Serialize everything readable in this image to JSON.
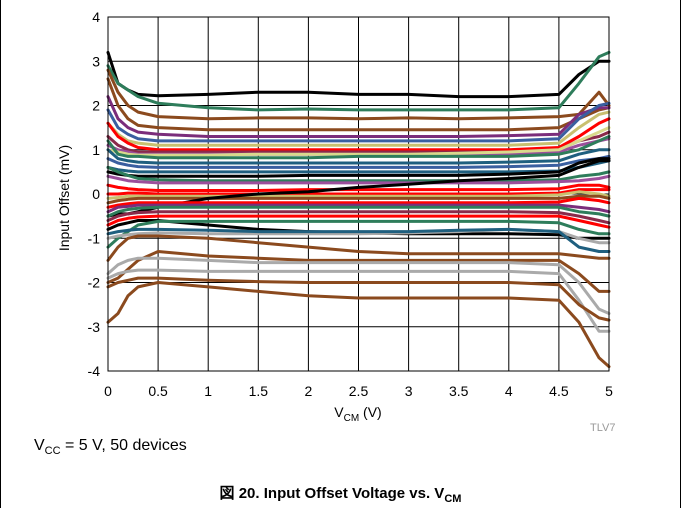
{
  "chart_data": {
    "type": "line",
    "title": "",
    "xlabel": "V",
    "xlabel_sub": "CM",
    "xlabel_unit": " (V)",
    "ylabel": "Input Offset (mV)",
    "xlim": [
      0,
      5
    ],
    "ylim": [
      -4,
      4
    ],
    "x_ticks": [
      "0",
      "0.5",
      "1",
      "1.5",
      "2",
      "2.5",
      "3",
      "3.5",
      "4",
      "4.5",
      "5"
    ],
    "y_ticks": [
      "4",
      "3",
      "2",
      "1",
      "0",
      "-1",
      "-2",
      "-3",
      "-4"
    ],
    "grid": true,
    "source_tag": "TLV7",
    "condition": {
      "prefix": "V",
      "sub": "CC",
      "rest": " = 5 V, 50 devices"
    },
    "caption": {
      "prefix": "図 20. Input Offset Voltage vs. V",
      "sub": "CM"
    },
    "x": [
      0,
      0.1,
      0.2,
      0.3,
      0.5,
      1,
      1.5,
      2,
      2.5,
      3,
      3.5,
      4,
      4.5,
      4.7,
      4.9,
      5
    ],
    "series": [
      {
        "color": "#000000",
        "values": [
          3.2,
          2.5,
          2.35,
          2.25,
          2.22,
          2.25,
          2.3,
          2.3,
          2.25,
          2.25,
          2.2,
          2.2,
          2.25,
          2.7,
          3.0,
          3.0
        ]
      },
      {
        "color": "#2e7d5b",
        "values": [
          2.9,
          2.5,
          2.35,
          2.2,
          2.05,
          1.95,
          1.9,
          1.92,
          1.9,
          1.9,
          1.9,
          1.9,
          1.95,
          2.5,
          3.1,
          3.2
        ]
      },
      {
        "color": "#8b4a1e",
        "values": [
          2.8,
          2.3,
          2.0,
          1.85,
          1.75,
          1.7,
          1.72,
          1.72,
          1.7,
          1.72,
          1.7,
          1.72,
          1.75,
          1.8,
          2.3,
          2.0
        ]
      },
      {
        "color": "#8b4a1e",
        "values": [
          2.6,
          2.0,
          1.7,
          1.55,
          1.5,
          1.45,
          1.45,
          1.45,
          1.45,
          1.45,
          1.45,
          1.45,
          1.5,
          1.7,
          1.9,
          1.95
        ]
      },
      {
        "color": "#7b2d7b",
        "values": [
          2.2,
          1.7,
          1.5,
          1.4,
          1.35,
          1.3,
          1.3,
          1.3,
          1.3,
          1.3,
          1.3,
          1.32,
          1.35,
          1.8,
          1.95,
          1.95
        ]
      },
      {
        "color": "#3a5fa0",
        "values": [
          1.9,
          1.5,
          1.35,
          1.25,
          1.2,
          1.2,
          1.2,
          1.2,
          1.2,
          1.2,
          1.2,
          1.2,
          1.25,
          1.7,
          2.0,
          2.05
        ]
      },
      {
        "color": "#c9c070",
        "values": [
          1.6,
          1.35,
          1.2,
          1.15,
          1.1,
          1.1,
          1.1,
          1.1,
          1.1,
          1.1,
          1.1,
          1.1,
          1.15,
          1.5,
          1.8,
          1.85
        ]
      },
      {
        "color": "#ff0000",
        "values": [
          1.6,
          1.3,
          1.15,
          1.05,
          1.0,
          1.0,
          1.0,
          1.0,
          1.0,
          1.0,
          1.0,
          1.0,
          1.05,
          1.3,
          1.6,
          1.7
        ]
      },
      {
        "color": "#8a2a4a",
        "values": [
          1.3,
          1.1,
          1.0,
          0.95,
          0.95,
          0.95,
          0.95,
          0.95,
          0.95,
          0.95,
          0.95,
          0.95,
          1.0,
          1.2,
          1.3,
          1.4
        ]
      },
      {
        "color": "#9b4f9b",
        "values": [
          1.1,
          1.0,
          0.95,
          0.9,
          0.9,
          0.9,
          0.9,
          0.9,
          0.9,
          0.9,
          0.9,
          0.9,
          0.95,
          1.1,
          1.2,
          1.25
        ]
      },
      {
        "color": "#d9d98c",
        "values": [
          1.0,
          0.95,
          0.9,
          0.88,
          0.88,
          0.88,
          0.9,
          0.9,
          0.9,
          0.9,
          0.92,
          0.95,
          1.0,
          1.2,
          1.4,
          1.5
        ]
      },
      {
        "color": "#2e7d5b",
        "values": [
          1.2,
          0.9,
          0.85,
          0.85,
          0.82,
          0.82,
          0.82,
          0.82,
          0.85,
          0.85,
          0.85,
          0.85,
          0.9,
          1.0,
          1.2,
          1.3
        ]
      },
      {
        "color": "#1f5f7f",
        "values": [
          1.0,
          0.8,
          0.75,
          0.72,
          0.7,
          0.7,
          0.7,
          0.7,
          0.7,
          0.7,
          0.7,
          0.72,
          0.75,
          0.9,
          1.0,
          1.0
        ]
      },
      {
        "color": "#3a5fa0",
        "values": [
          0.8,
          0.7,
          0.65,
          0.62,
          0.6,
          0.6,
          0.6,
          0.6,
          0.6,
          0.6,
          0.6,
          0.62,
          0.65,
          0.75,
          0.8,
          0.85
        ]
      },
      {
        "color": "#1f5f7f",
        "values": [
          0.6,
          0.55,
          0.52,
          0.5,
          0.5,
          0.5,
          0.5,
          0.5,
          0.5,
          0.5,
          0.5,
          0.5,
          0.52,
          0.6,
          0.7,
          0.75
        ]
      },
      {
        "color": "#000000",
        "values": [
          0.5,
          0.45,
          0.42,
          0.4,
          0.4,
          0.4,
          0.4,
          0.42,
          0.42,
          0.42,
          0.42,
          0.45,
          0.5,
          0.7,
          0.8,
          0.8
        ]
      },
      {
        "color": "#2e7d5b",
        "values": [
          0.6,
          0.5,
          0.42,
          0.35,
          0.32,
          0.3,
          0.3,
          0.3,
          0.3,
          0.3,
          0.3,
          0.3,
          0.32,
          0.4,
          0.45,
          0.5
        ]
      },
      {
        "color": "#9b4f9b",
        "values": [
          0.4,
          0.35,
          0.3,
          0.28,
          0.25,
          0.25,
          0.25,
          0.25,
          0.25,
          0.25,
          0.25,
          0.25,
          0.28,
          0.3,
          0.35,
          0.4
        ]
      },
      {
        "color": "#ff0000",
        "values": [
          0.2,
          0.15,
          0.12,
          0.1,
          0.08,
          0.08,
          0.08,
          0.1,
          0.1,
          0.1,
          0.1,
          0.1,
          0.12,
          0.2,
          0.2,
          0.15
        ]
      },
      {
        "color": "#ff0000",
        "values": [
          0.0,
          0.0,
          0.02,
          0.02,
          0.0,
          0.0,
          0.0,
          0.0,
          0.0,
          0.0,
          0.0,
          0.0,
          0.02,
          0.1,
          0.1,
          0.1
        ]
      },
      {
        "color": "#c9c070",
        "values": [
          -0.1,
          -0.08,
          -0.05,
          -0.05,
          -0.05,
          -0.05,
          -0.05,
          -0.05,
          -0.05,
          -0.05,
          -0.05,
          -0.05,
          -0.02,
          0.05,
          0.0,
          -0.05
        ]
      },
      {
        "color": "#8b4a1e",
        "values": [
          -0.2,
          -0.15,
          -0.12,
          -0.1,
          -0.1,
          -0.1,
          -0.1,
          -0.1,
          -0.1,
          -0.1,
          -0.1,
          -0.1,
          -0.1,
          -0.05,
          -0.05,
          -0.1
        ]
      },
      {
        "color": "#000000",
        "values": [
          -0.5,
          -0.45,
          -0.45,
          -0.4,
          -0.3,
          -0.1,
          0.0,
          0.05,
          0.15,
          0.22,
          0.3,
          0.35,
          0.42,
          0.6,
          0.75,
          0.75
        ]
      },
      {
        "color": "#ff0000",
        "values": [
          -0.3,
          -0.25,
          -0.22,
          -0.2,
          -0.2,
          -0.2,
          -0.2,
          -0.2,
          -0.2,
          -0.2,
          -0.2,
          -0.2,
          -0.18,
          -0.1,
          -0.15,
          -0.2
        ]
      },
      {
        "color": "#7b2d7b",
        "values": [
          -0.4,
          -0.3,
          -0.28,
          -0.25,
          -0.25,
          -0.25,
          -0.25,
          -0.25,
          -0.25,
          -0.25,
          -0.25,
          -0.25,
          -0.25,
          -0.3,
          -0.35,
          -0.4
        ]
      },
      {
        "color": "#2e7d5b",
        "values": [
          -0.5,
          -0.4,
          -0.35,
          -0.32,
          -0.3,
          -0.3,
          -0.3,
          -0.3,
          -0.3,
          -0.3,
          -0.3,
          -0.3,
          -0.3,
          -0.4,
          -0.45,
          -0.5
        ]
      },
      {
        "color": "#8a2a4a",
        "values": [
          -0.6,
          -0.5,
          -0.45,
          -0.42,
          -0.4,
          -0.4,
          -0.4,
          -0.4,
          -0.4,
          -0.4,
          -0.4,
          -0.4,
          -0.42,
          -0.5,
          -0.6,
          -0.65
        ]
      },
      {
        "color": "#ff0000",
        "values": [
          -0.7,
          -0.6,
          -0.55,
          -0.52,
          -0.5,
          -0.5,
          -0.5,
          -0.5,
          -0.5,
          -0.5,
          -0.5,
          -0.5,
          -0.5,
          -0.6,
          -0.7,
          -0.75
        ]
      },
      {
        "color": "#000000",
        "values": [
          -0.8,
          -0.7,
          -0.65,
          -0.6,
          -0.6,
          -0.7,
          -0.8,
          -0.85,
          -0.88,
          -0.9,
          -0.9,
          -0.9,
          -0.92,
          -1.0,
          -1.0,
          -1.0
        ]
      },
      {
        "color": "#2e7d5b",
        "values": [
          -1.2,
          -1.0,
          -0.85,
          -0.7,
          -0.62,
          -0.62,
          -0.62,
          -0.62,
          -0.62,
          -0.62,
          -0.62,
          -0.62,
          -0.65,
          -0.8,
          -0.9,
          -0.9
        ]
      },
      {
        "color": "#aaaaaa",
        "values": [
          -1.0,
          -0.95,
          -0.92,
          -0.9,
          -0.88,
          -0.9,
          -0.9,
          -0.9,
          -0.9,
          -0.88,
          -0.85,
          -0.8,
          -0.85,
          -1.0,
          -1.1,
          -1.1
        ]
      },
      {
        "color": "#1f5f7f",
        "values": [
          -0.9,
          -0.85,
          -0.82,
          -0.8,
          -0.8,
          -0.82,
          -0.85,
          -0.85,
          -0.85,
          -0.85,
          -0.82,
          -0.8,
          -0.85,
          -1.2,
          -1.3,
          -1.3
        ]
      },
      {
        "color": "#8b4a1e",
        "values": [
          -1.5,
          -1.2,
          -1.0,
          -0.95,
          -0.95,
          -1.0,
          -1.1,
          -1.2,
          -1.3,
          -1.35,
          -1.35,
          -1.35,
          -1.35,
          -1.4,
          -1.45,
          -1.45
        ]
      },
      {
        "color": "#8b4a1e",
        "values": [
          -2.0,
          -1.9,
          -1.7,
          -1.5,
          -1.3,
          -1.4,
          -1.45,
          -1.5,
          -1.5,
          -1.5,
          -1.5,
          -1.5,
          -1.5,
          -1.8,
          -2.2,
          -2.2
        ]
      },
      {
        "color": "#aaaaaa",
        "values": [
          -1.8,
          -1.6,
          -1.5,
          -1.45,
          -1.45,
          -1.5,
          -1.55,
          -1.55,
          -1.55,
          -1.55,
          -1.55,
          -1.55,
          -1.6,
          -2.0,
          -2.6,
          -2.7
        ]
      },
      {
        "color": "#aaaaaa",
        "values": [
          -1.9,
          -1.8,
          -1.75,
          -1.72,
          -1.72,
          -1.75,
          -1.75,
          -1.75,
          -1.75,
          -1.75,
          -1.75,
          -1.75,
          -1.8,
          -2.4,
          -3.1,
          -3.1
        ]
      },
      {
        "color": "#8b4a1e",
        "values": [
          -2.1,
          -2.0,
          -1.95,
          -1.9,
          -1.9,
          -1.95,
          -1.98,
          -2.0,
          -2.0,
          -2.0,
          -2.0,
          -2.0,
          -2.05,
          -2.5,
          -2.8,
          -2.85
        ]
      },
      {
        "color": "#8b4a1e",
        "values": [
          -2.9,
          -2.7,
          -2.3,
          -2.1,
          -2.0,
          -2.1,
          -2.2,
          -2.3,
          -2.35,
          -2.35,
          -2.35,
          -2.35,
          -2.4,
          -2.9,
          -3.7,
          -3.9
        ]
      }
    ]
  }
}
